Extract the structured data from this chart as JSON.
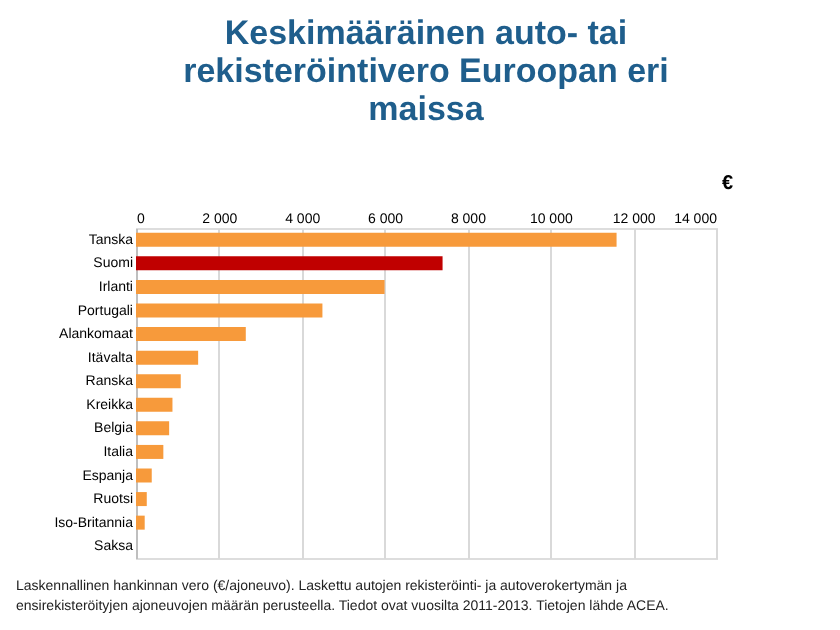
{
  "chart_data": {
    "type": "bar",
    "orientation": "horizontal",
    "title": "Keskimääräinen auto- tai rekisteröintivero Euroopan eri maissa",
    "xlabel": "€",
    "categories": [
      "Tanska",
      "Suomi",
      "Irlanti",
      "Portugali",
      "Alankomaat",
      "Itävalta",
      "Ranska",
      "Kreikka",
      "Belgia",
      "Italia",
      "Espanja",
      "Ruotsi",
      "Iso-Britannia",
      "Saksa"
    ],
    "values": [
      11600,
      7400,
      6000,
      4500,
      2650,
      1500,
      1080,
      880,
      800,
      660,
      380,
      260,
      210,
      0
    ],
    "colors": [
      "#f79a3b",
      "#c00000",
      "#f79a3b",
      "#f79a3b",
      "#f79a3b",
      "#f79a3b",
      "#f79a3b",
      "#f79a3b",
      "#f79a3b",
      "#f79a3b",
      "#f79a3b",
      "#f79a3b",
      "#f79a3b",
      "#f79a3b"
    ],
    "xlim": [
      0,
      14000
    ],
    "xticks": [
      0,
      {
        "value": 2000,
        "label": "2 000"
      },
      {
        "value": 4000,
        "label": "4 000"
      },
      {
        "value": 6000,
        "label": "6 000"
      },
      {
        "value": 8000,
        "label": "8 000"
      },
      {
        "value": 10000,
        "label": "10 000"
      },
      {
        "value": 12000,
        "label": "12 000"
      },
      {
        "value": 14000,
        "label": "14 000"
      }
    ],
    "grid": "x",
    "annotations": [
      "Laskennallinen hankinnan vero (€/ajoneuvo). Laskettu autojen rekisteröinti- ja autoverokertymän ja ensirekisteröityjen ajoneuvojen määrän perusteella. Tiedot ovat vuosilta 2011-2013. Tietojen lähde ACEA."
    ]
  }
}
